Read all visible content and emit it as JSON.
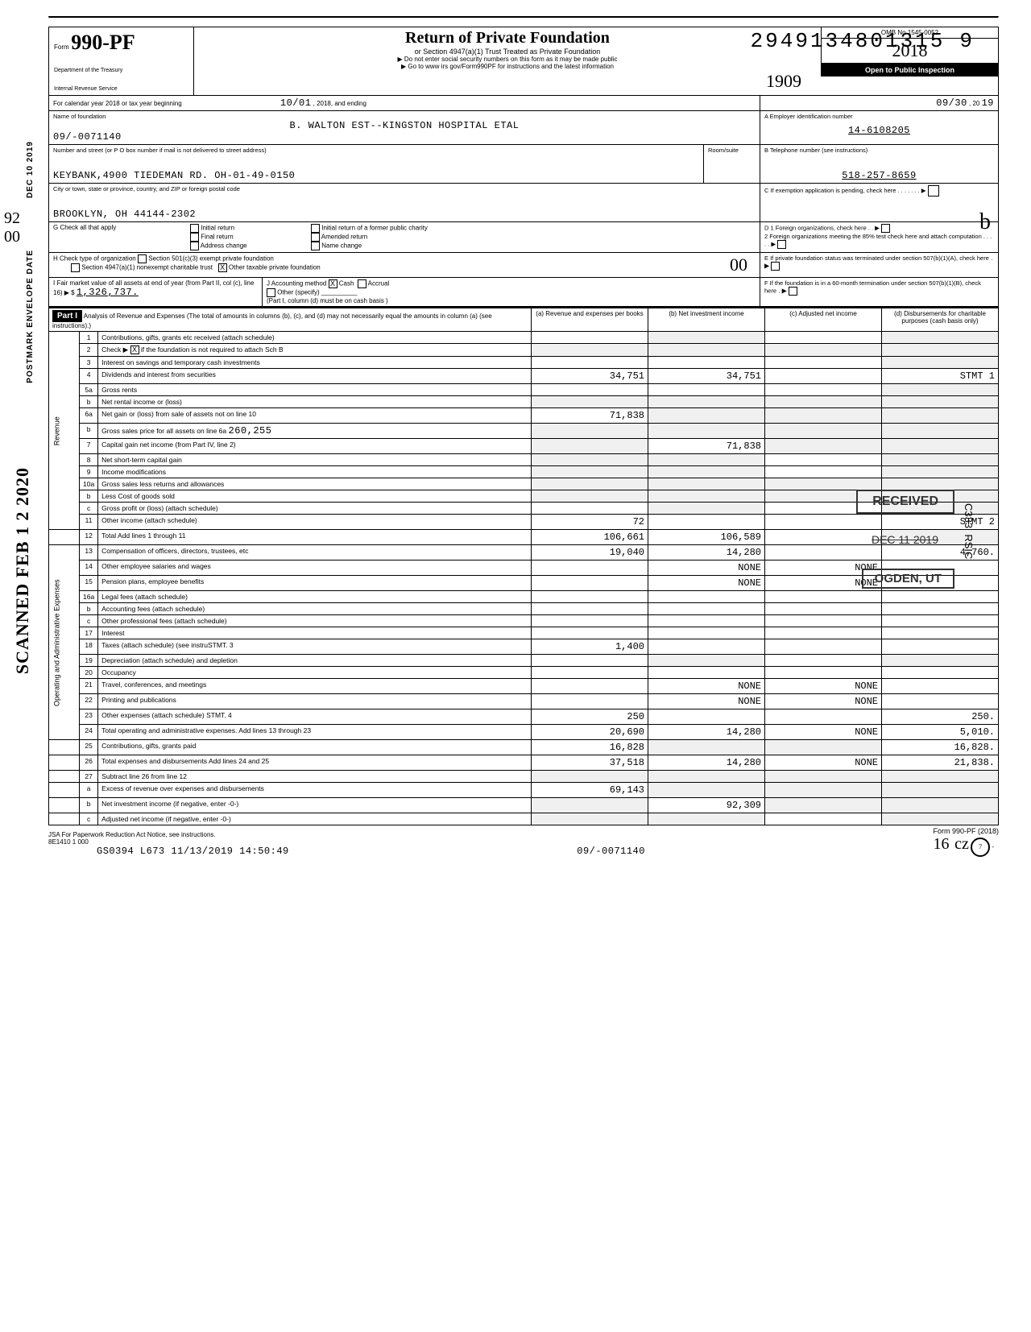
{
  "dln": "29491348013159",
  "form": {
    "label": "Form",
    "number": "990-PF",
    "dept1": "Department of the Treasury",
    "dept2": "Internal Revenue Service",
    "title": "Return of Private Foundation",
    "sub1": "or Section 4947(a)(1) Trust Treated as Private Foundation",
    "sub2": "▶ Do not enter social security numbers on this form as it may be made public",
    "sub3": "▶ Go to www irs gov/Form990PF for instructions and the latest information",
    "omb": "OMB No 1545-0052",
    "year": "2018",
    "open": "Open to Public Inspection",
    "cursive": "1909"
  },
  "cal": {
    "pre": "For calendar year 2018 or tax year beginning",
    "begin": "10/01",
    "mid": ", 2018, and ending",
    "end": "09/30",
    "end2": ", 20",
    "endyr": "19"
  },
  "name": {
    "label": "Name of foundation",
    "val": "B. WALTON EST--KINGSTON HOSPITAL ETAL",
    "sub": "09/-0071140"
  },
  "ein": {
    "label": "A  Employer identification number",
    "val": "14-6108205"
  },
  "addr": {
    "label": "Number and street (or P O  box number if mail is not delivered to street address)",
    "room": "Room/suite",
    "val": "KEYBANK,4900 TIEDEMAN RD. OH-01-49-0150"
  },
  "tel": {
    "label": "B  Telephone number (see instructions)",
    "val": "518-257-8659"
  },
  "city": {
    "label": "City or town, state or province, country, and ZIP or foreign postal code",
    "val": "BROOKLYN, OH 44144-2302"
  },
  "boxC": {
    "label": "C  If exemption application is pending, check here"
  },
  "boxG": {
    "label": "G  Check all that apply",
    "o1": "Initial return",
    "o2": "Final return",
    "o3": "Address change",
    "o4": "Initial return of a former public charity",
    "o5": "Amended return",
    "o6": "Name change"
  },
  "boxD": {
    "l1": "D  1  Foreign organizations, check here",
    "l2": "2  Foreign organizations meeting the 85% test  check here and attach computation"
  },
  "boxH": {
    "label": "H  Check type of organization",
    "o1": "Section 501(c)(3) exempt private foundation",
    "o2": "Section 4947(a)(1) nonexempt charitable trust",
    "o3": "Other taxable private foundation"
  },
  "boxE": "E  If private foundation status was terminated under section 507(b)(1)(A), check here",
  "boxI": {
    "label": "I  Fair market value of all assets at end of year (from Part II, col (c), line 16) ▶ $",
    "val": "1,326,737."
  },
  "boxJ": {
    "label": "J  Accounting method",
    "o1": "Cash",
    "o2": "Accrual",
    "o3": "Other (specify)",
    "note": "(Part I, column (d) must be on cash basis )"
  },
  "boxF": "F  If the foundation is in a 60-month termination under section 507(b)(1)(B), check here",
  "part1": {
    "tag": "Part I",
    "title": "Analysis of Revenue and Expenses (The total of amounts in columns (b), (c), and (d) may not necessarily equal the amounts in column (a) (see instructions).)",
    "ca": "(a) Revenue and expenses per books",
    "cb": "(b) Net investment income",
    "cc": "(c) Adjusted net income",
    "cd": "(d) Disbursements for charitable purposes (cash basis only)"
  },
  "rows": {
    "r1": "Contributions, gifts, grants  etc  received (attach schedule)",
    "r2a": "Check ▶",
    "r2b": "if the foundation is not required to attach Sch B",
    "r3": "Interest on savings and temporary cash investments",
    "r4": "Dividends and interest from securities",
    "r5a": "Gross rents",
    "r5b": "Net rental income or (loss)",
    "r6a": "Net gain or (loss) from sale of assets not on line 10",
    "r6b": "Gross sales price for all assets on line 6a",
    "r7": "Capital gain net income (from Part IV, line 2)",
    "r8": "Net short-term capital gain",
    "r9": "Income modifications",
    "r10a": "Gross sales less returns and allowances",
    "r10b": "Less  Cost of goods sold",
    "r10c": "Gross profit or (loss) (attach schedule)",
    "r11": "Other income (attach schedule)",
    "r12": "Total  Add lines 1 through 11",
    "r13": "Compensation of officers, directors, trustees, etc",
    "r14": "Other employee salaries and wages",
    "r15": "Pension plans, employee benefits",
    "r16a": "Legal fees (attach schedule)",
    "r16b": "Accounting fees (attach schedule)",
    "r16c": "Other professional fees (attach schedule)",
    "r17": "Interest",
    "r18": "Taxes (attach schedule) (see instruSTMT. 3",
    "r19": "Depreciation (attach schedule) and depletion",
    "r20": "Occupancy",
    "r21": "Travel, conferences, and meetings",
    "r22": "Printing and publications",
    "r23": "Other expenses (attach schedule) STMT. 4",
    "r24": "Total operating and administrative expenses. Add lines 13 through 23",
    "r25": "Contributions, gifts, grants paid",
    "r26": "Total expenses and disbursements  Add lines 24 and 25",
    "r27": "Subtract line 26 from line 12",
    "r27a": "Excess of revenue over expenses and disbursements",
    "r27b": "Net investment income (if negative, enter -0-)",
    "r27c": "Adjusted net income (if negative, enter -0-)"
  },
  "vals": {
    "r4a": "34,751",
    "r4b": "34,751",
    "r4d": "STMT 1",
    "r6a_a": "71,838",
    "r6b_v": "260,255",
    "r7b": "71,838",
    "r11a": "72",
    "r11d": "STMT 2",
    "r12a": "106,661",
    "r12b": "106,589",
    "r13a": "19,040",
    "r13b": "14,280",
    "r13d": "4,760.",
    "r14b": "NONE",
    "r14c": "NONE",
    "r15b": "NONE",
    "r15c": "NONE",
    "r18a": "1,400",
    "r21b": "NONE",
    "r21c": "NONE",
    "r22b": "NONE",
    "r22c": "NONE",
    "r23a": "250",
    "r23d": "250.",
    "r24a": "20,690",
    "r24b": "14,280",
    "r24c": "NONE",
    "r24d": "5,010.",
    "r25a": "16,828",
    "r25d": "16,828.",
    "r26a": "37,518",
    "r26b": "14,280",
    "r26c": "NONE",
    "r26d": "21,838.",
    "r27a_a": "69,143",
    "r27b_b": "92,309"
  },
  "stamps": {
    "recv": "RECEIVED",
    "date": "DEC 11 2019",
    "ogden": "OGDEN, UT",
    "vert1": "C333",
    "vert2": "RSIC"
  },
  "side": {
    "date": "DEC 10 2019",
    "env": "POSTMARK ENVELOPE DATE",
    "scan": "SCANNED FEB 1 2 2020"
  },
  "foot": {
    "jsa": "JSA  For Paperwork Reduction Act Notice, see instructions.",
    "code": "8E1410 1 000",
    "gs": "GS0394 L673 11/13/2019 14:50:49",
    "mid": "09/-0071140",
    "form": "Form 990-PF (2018)"
  }
}
